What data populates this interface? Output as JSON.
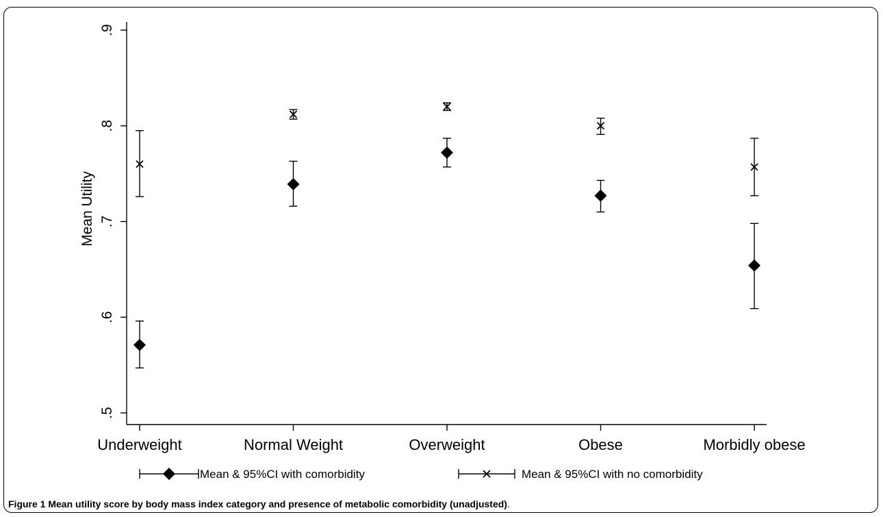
{
  "figure": {
    "caption_number": "Figure 1",
    "caption_text": "Mean utility score by body mass index category and presence of metabolic comorbidity (unadjusted)",
    "caption_end": "."
  },
  "chart_data": {
    "type": "scatter",
    "ylabel": "Mean Utility",
    "xlabel": "",
    "ylim": [
      0.5,
      0.9
    ],
    "yticks": [
      0.5,
      0.6,
      0.7,
      0.8,
      0.9
    ],
    "ytick_labels": [
      ".5",
      ".6",
      ".7",
      ".8",
      ".9"
    ],
    "categories": [
      "Underweight",
      "Normal Weight",
      "Overweight",
      "Obese",
      "Morbidly obese"
    ],
    "grid": false,
    "legend_position": "bottom",
    "series": [
      {
        "name": "Mean & 95%CI with comorbidity",
        "marker": "diamond",
        "mean": [
          0.571,
          0.739,
          0.772,
          0.727,
          0.654
        ],
        "ci_low": [
          0.547,
          0.716,
          0.757,
          0.71,
          0.609
        ],
        "ci_high": [
          0.596,
          0.763,
          0.787,
          0.743,
          0.698
        ]
      },
      {
        "name": "Mean & 95%CI with no comorbidity",
        "marker": "x",
        "mean": [
          0.76,
          0.812,
          0.82,
          0.8,
          0.757
        ],
        "ci_low": [
          0.726,
          0.807,
          0.816,
          0.791,
          0.727
        ],
        "ci_high": [
          0.795,
          0.817,
          0.824,
          0.808,
          0.787
        ]
      }
    ],
    "colors": {
      "marks": "#000000"
    }
  }
}
